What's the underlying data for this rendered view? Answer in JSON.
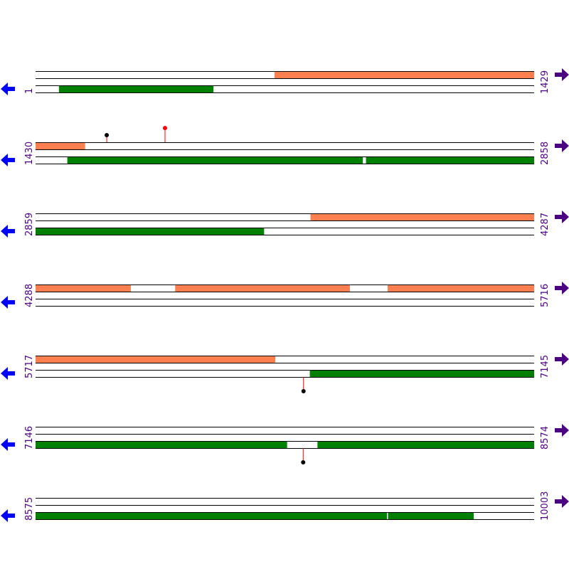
{
  "colors": {
    "forward_feature": "#FF7F50",
    "reverse_feature": "#008000",
    "label": "#4B0082",
    "back_arrow": "#0000FF",
    "forward_arrow": "#4B0082",
    "site_black": "#000000",
    "site_red": "#FF0000",
    "stem": "#FF0000",
    "track_line": "#000000"
  },
  "icons": {
    "back": "arrow-left-icon",
    "forward": "arrow-right-icon"
  },
  "rows": [
    {
      "start": "1",
      "end": "1429",
      "range": [
        1,
        1429
      ],
      "forward_features": [
        [
          686,
          1429
        ]
      ],
      "reverse_features": [
        [
          68,
          510
        ]
      ],
      "sites_top": [],
      "sites_bottom": []
    },
    {
      "start": "1430",
      "end": "2858",
      "range": [
        1430,
        2858
      ],
      "forward_features": [
        [
          1430,
          1571
        ]
      ],
      "reverse_features": [
        [
          1521,
          2367
        ],
        [
          2377,
          2858
        ]
      ],
      "sites_top": [
        {
          "pos": 1634,
          "color": "black"
        },
        {
          "pos": 1801,
          "color": "red"
        }
      ],
      "sites_bottom": []
    },
    {
      "start": "2859",
      "end": "4287",
      "range": [
        2859,
        4287
      ],
      "forward_features": [
        [
          3647,
          4287
        ]
      ],
      "reverse_features": [
        [
          2859,
          3513
        ]
      ],
      "sites_top": [],
      "sites_bottom": []
    },
    {
      "start": "4288",
      "end": "5716",
      "range": [
        4288,
        5716
      ],
      "forward_features": [
        [
          4288,
          4560
        ],
        [
          4688,
          5188
        ],
        [
          5297,
          5716
        ]
      ],
      "reverse_features": [],
      "sites_top": [],
      "sites_bottom": []
    },
    {
      "start": "5717",
      "end": "7145",
      "range": [
        5717,
        7145
      ],
      "forward_features": [
        [
          5717,
          6403
        ]
      ],
      "reverse_features": [
        [
          6503,
          7145
        ]
      ],
      "sites_top": [],
      "sites_bottom": [
        {
          "pos": 6485,
          "color": "black"
        }
      ]
    },
    {
      "start": "7146",
      "end": "8574",
      "range": [
        7146,
        8574
      ],
      "forward_features": [],
      "reverse_features": [
        [
          7146,
          7866
        ],
        [
          7954,
          8574
        ]
      ],
      "sites_top": [],
      "sites_bottom": [
        {
          "pos": 7913,
          "color": "black"
        }
      ]
    },
    {
      "start": "8575",
      "end": "10003",
      "range": [
        8575,
        10003
      ],
      "forward_features": [],
      "reverse_features": [
        [
          8575,
          9581
        ],
        [
          9585,
          9830
        ]
      ],
      "sites_top": [],
      "sites_bottom": []
    }
  ]
}
